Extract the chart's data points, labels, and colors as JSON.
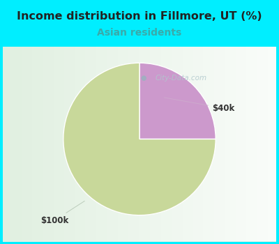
{
  "title": "Income distribution in Fillmore, UT (%)",
  "subtitle": "Asian residents",
  "subtitle_color": "#3aaaaa",
  "title_color": "#222222",
  "background_outer": "#00eeff",
  "slices": [
    {
      "label": "$100k",
      "value": 75,
      "color": "#c8d89a"
    },
    {
      "label": "$40k",
      "value": 25,
      "color": "#cc99cc"
    }
  ],
  "label_40k_text": "$40k",
  "label_100k_text": "$100k",
  "watermark": "City-Data.com",
  "watermark_color": "#b0c8cc",
  "chart_bg_color": "#e0efe8",
  "chart_bg_color2": "#f5fcf8"
}
